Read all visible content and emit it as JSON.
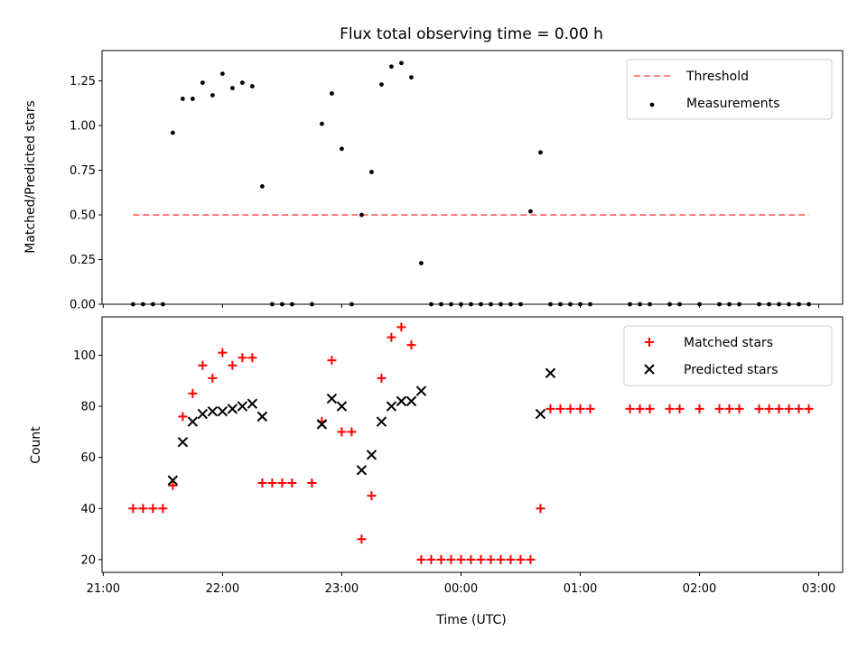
{
  "chart_data": [
    {
      "type": "scatter",
      "title": "Flux total observing time = 0.00 h",
      "ylabel": "Matched/Predicted stars",
      "xlabel": "",
      "x_unit": "hours",
      "xlim": [
        20.99,
        27.2
      ],
      "ylim": [
        0.0,
        1.42
      ],
      "yticks": [
        "0.00",
        "0.25",
        "0.50",
        "0.75",
        "1.00",
        "1.25"
      ],
      "xticks_labels_shown": false,
      "legend": {
        "placement": "top-right",
        "entries": [
          "Threshold",
          "Measurements"
        ]
      },
      "threshold": {
        "name": "Threshold",
        "x_start": "21:15",
        "x_end": "02:55",
        "y": 0.5,
        "color": "#ff7070",
        "style": "dashed"
      },
      "series": [
        {
          "name": "Measurements",
          "color": "#000000",
          "marker": "dot",
          "x": [
            "21:15",
            "21:20",
            "21:25",
            "21:30",
            "21:35",
            "21:40",
            "21:45",
            "21:50",
            "21:55",
            "22:00",
            "22:05",
            "22:10",
            "22:15",
            "22:20",
            "22:25",
            "22:30",
            "22:35",
            "22:45",
            "22:50",
            "22:55",
            "23:00",
            "23:05",
            "23:10",
            "23:15",
            "23:20",
            "23:25",
            "23:30",
            "23:35",
            "23:40",
            "23:45",
            "23:50",
            "23:55",
            "00:00",
            "00:05",
            "00:10",
            "00:15",
            "00:20",
            "00:25",
            "00:30",
            "00:35",
            "00:40",
            "00:45",
            "00:50",
            "00:55",
            "01:00",
            "01:05",
            "01:25",
            "01:30",
            "01:35",
            "01:45",
            "01:50",
            "02:00",
            "02:10",
            "02:15",
            "02:20",
            "02:30",
            "02:35",
            "02:40",
            "02:45",
            "02:50",
            "02:55"
          ],
          "y": [
            0,
            0,
            0,
            0,
            0.96,
            1.15,
            1.15,
            1.24,
            1.17,
            1.29,
            1.21,
            1.24,
            1.22,
            0.66,
            0,
            0,
            0,
            0,
            1.01,
            1.18,
            0.87,
            0,
            0.5,
            0.74,
            1.23,
            1.33,
            1.35,
            1.27,
            0.23,
            0,
            0,
            0,
            0,
            0,
            0,
            0,
            0,
            0,
            0,
            0.52,
            0.85,
            0,
            0,
            0,
            0,
            0,
            0,
            0,
            0,
            0,
            0,
            0,
            0,
            0,
            0,
            0,
            0,
            0,
            0,
            0,
            0
          ]
        }
      ]
    },
    {
      "type": "scatter",
      "title": "",
      "ylabel": "Count",
      "xlabel": "Time (UTC)",
      "x_unit": "hours",
      "xlim": [
        20.99,
        27.2
      ],
      "ylim": [
        15,
        115
      ],
      "yticks": [
        "20",
        "40",
        "60",
        "80",
        "100"
      ],
      "xticks": [
        "21:00",
        "22:00",
        "23:00",
        "00:00",
        "01:00",
        "02:00",
        "03:00"
      ],
      "legend": {
        "placement": "top-right",
        "entries": [
          "Matched stars",
          "Predicted stars"
        ]
      },
      "series": [
        {
          "name": "Matched stars",
          "color": "#ff0000",
          "marker": "plus",
          "x": [
            "21:15",
            "21:20",
            "21:25",
            "21:30",
            "21:35",
            "21:40",
            "21:45",
            "21:50",
            "21:55",
            "22:00",
            "22:05",
            "22:10",
            "22:15",
            "22:20",
            "22:25",
            "22:30",
            "22:35",
            "22:45",
            "22:50",
            "22:55",
            "23:00",
            "23:05",
            "23:10",
            "23:15",
            "23:20",
            "23:25",
            "23:30",
            "23:35",
            "23:40",
            "23:45",
            "23:50",
            "23:55",
            "00:00",
            "00:05",
            "00:10",
            "00:15",
            "00:20",
            "00:25",
            "00:30",
            "00:35",
            "00:40",
            "00:45",
            "00:50",
            "00:55",
            "01:00",
            "01:05",
            "01:25",
            "01:30",
            "01:35",
            "01:45",
            "01:50",
            "02:00",
            "02:10",
            "02:15",
            "02:20",
            "02:30",
            "02:35",
            "02:40",
            "02:45",
            "02:50",
            "02:55"
          ],
          "y": [
            40,
            40,
            40,
            40,
            49,
            76,
            85,
            96,
            91,
            101,
            96,
            99,
            99,
            50,
            50,
            50,
            50,
            50,
            74,
            98,
            70,
            70,
            28,
            45,
            91,
            107,
            111,
            104,
            20,
            20,
            20,
            20,
            20,
            20,
            20,
            20,
            20,
            20,
            20,
            20,
            40,
            79,
            79,
            79,
            79,
            79,
            79,
            79,
            79,
            79,
            79,
            79,
            79,
            79,
            79,
            79,
            79,
            79,
            79,
            79,
            79
          ]
        },
        {
          "name": "Predicted stars",
          "color": "#000000",
          "marker": "x",
          "x": [
            "21:35",
            "21:40",
            "21:45",
            "21:50",
            "21:55",
            "22:00",
            "22:05",
            "22:10",
            "22:15",
            "22:20",
            "22:50",
            "22:55",
            "23:00",
            "23:10",
            "23:15",
            "23:20",
            "23:25",
            "23:30",
            "23:35",
            "23:40",
            "00:40",
            "00:45"
          ],
          "y": [
            51,
            66,
            74,
            77,
            78,
            78,
            79,
            80,
            81,
            76,
            73,
            83,
            80,
            55,
            61,
            74,
            80,
            82,
            82,
            86,
            77,
            93
          ]
        }
      ]
    }
  ]
}
